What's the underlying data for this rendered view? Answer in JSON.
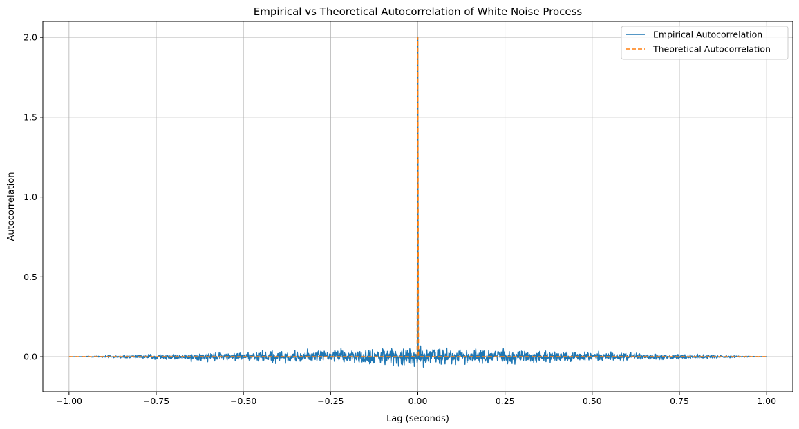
{
  "chart_data": {
    "type": "line",
    "title": "Empirical vs Theoretical Autocorrelation of White Noise Process",
    "xlabel": "Lag (seconds)",
    "ylabel": "Autocorrelation",
    "xlim": [
      -1.075,
      1.075
    ],
    "ylim": [
      -0.22,
      2.1
    ],
    "xticks": [
      -1.0,
      -0.75,
      -0.5,
      -0.25,
      0.0,
      0.25,
      0.5,
      0.75,
      1.0
    ],
    "xtick_labels": [
      "−1.00",
      "−0.75",
      "−0.50",
      "−0.25",
      "0.00",
      "0.25",
      "0.50",
      "0.75",
      "1.00"
    ],
    "yticks": [
      0.0,
      0.5,
      1.0,
      1.5,
      2.0
    ],
    "ytick_labels": [
      "0.0",
      "0.5",
      "1.0",
      "1.5",
      "2.0"
    ],
    "grid": true,
    "legend_position": "top-right",
    "series": [
      {
        "name": "Empirical Autocorrelation",
        "color": "#1f77b4",
        "style": "solid",
        "generator": "noise",
        "x_range": [
          -1.0,
          1.0
        ],
        "num_points": 1999,
        "peak_x": 0.0,
        "peak_y": 2.0,
        "noise_amplitude": 0.06
      },
      {
        "name": "Theoretical Autocorrelation",
        "color": "#ff7f0e",
        "style": "dashed",
        "x": [
          -1.0,
          -0.002,
          0.0,
          0.002,
          1.0
        ],
        "y": [
          0.0,
          0.0,
          2.0,
          0.0,
          0.0
        ]
      }
    ]
  }
}
